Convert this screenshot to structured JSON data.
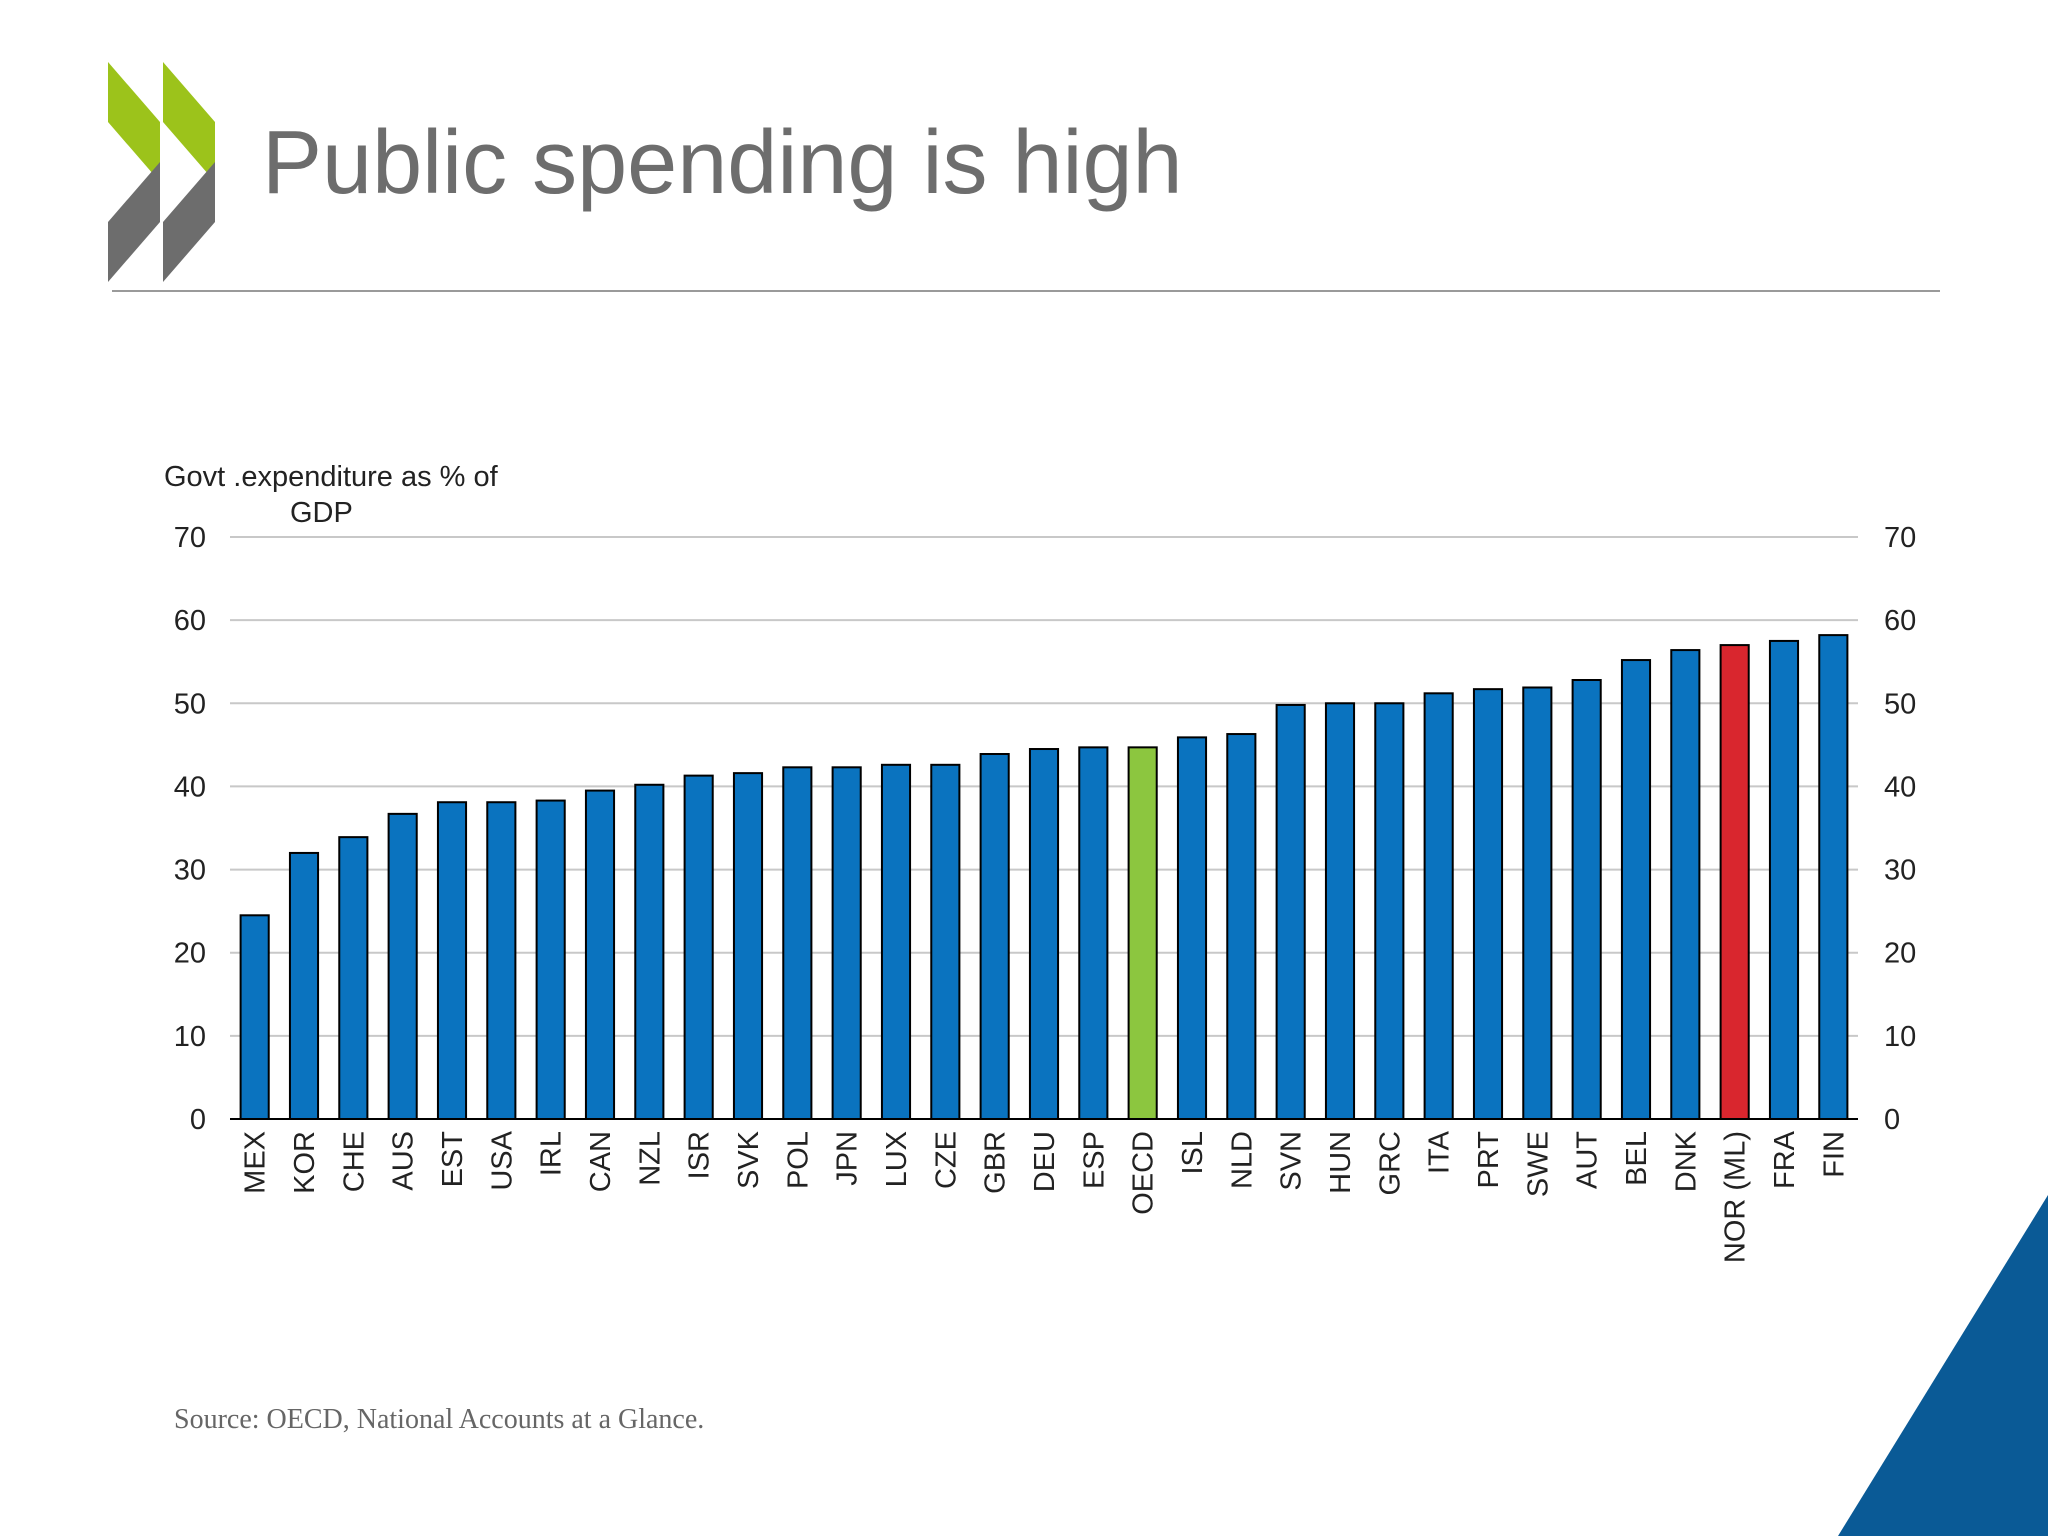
{
  "slide": {
    "title": "Public spending is high",
    "source": "Source: OECD, National Accounts at a Glance."
  },
  "colors": {
    "bar_default": "#0a73bf",
    "bar_oecd": "#8cc63f",
    "bar_nor": "#d9262e",
    "logo_green": "#9cc31b",
    "logo_grey": "#6d6d6d",
    "corner_blue": "#0a5a96"
  },
  "chart_data": {
    "type": "bar",
    "ylabel_line1": "Govt .expenditure as % of",
    "ylabel_line2": "GDP",
    "ylim": [
      0,
      70
    ],
    "yticks": [
      0,
      10,
      20,
      30,
      40,
      50,
      60,
      70
    ],
    "right_axis": true,
    "grid": true,
    "categories": [
      "MEX",
      "KOR",
      "CHE",
      "AUS",
      "EST",
      "USA",
      "IRL",
      "CAN",
      "NZL",
      "ISR",
      "SVK",
      "POL",
      "JPN",
      "LUX",
      "CZE",
      "GBR",
      "DEU",
      "ESP",
      "OECD",
      "ISL",
      "NLD",
      "SVN",
      "HUN",
      "GRC",
      "ITA",
      "PRT",
      "SWE",
      "AUT",
      "BEL",
      "DNK",
      "NOR (ML)",
      "FRA",
      "FIN"
    ],
    "values": [
      24.5,
      32.0,
      33.9,
      36.7,
      38.1,
      38.1,
      38.3,
      39.5,
      40.2,
      41.3,
      41.6,
      42.3,
      42.3,
      42.6,
      42.6,
      43.9,
      44.5,
      44.7,
      44.7,
      45.9,
      46.3,
      49.8,
      50.0,
      50.0,
      51.2,
      51.7,
      51.9,
      52.8,
      55.2,
      56.4,
      57.0,
      57.5,
      58.2
    ],
    "highlights": {
      "OECD": "bar_oecd",
      "NOR (ML)": "bar_nor"
    }
  }
}
